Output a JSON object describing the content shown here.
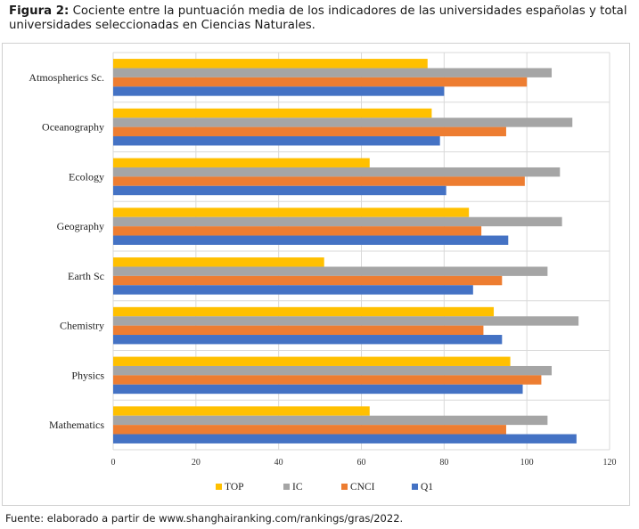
{
  "caption": {
    "label": "Figura 2:",
    "text": "Cociente entre la puntuación media de los indicadores de las universidades españolas y total universidades seleccionadas en Ciencias Naturales."
  },
  "source": "Fuente: elaborado a partir de www.shanghairanking.com/rankings/gras/2022.",
  "chart_data": {
    "type": "bar",
    "orientation": "horizontal",
    "categories": [
      "Atmospherics Sc.",
      "Oceanography",
      "Ecology",
      "Geography",
      "Earth Sc",
      "Chemistry",
      "Physics",
      "Mathematics"
    ],
    "series": [
      {
        "name": "TOP",
        "color": "#ffc000",
        "values": [
          76,
          77,
          62,
          86,
          51,
          92,
          96,
          62
        ]
      },
      {
        "name": "IC",
        "color": "#a5a5a5",
        "values": [
          106,
          111,
          108,
          108.5,
          105,
          112.5,
          106,
          105
        ]
      },
      {
        "name": "CNCI",
        "color": "#ed7d31",
        "values": [
          100,
          95,
          99.5,
          89,
          94,
          89.5,
          103.5,
          95
        ]
      },
      {
        "name": "Q1",
        "color": "#4472c4",
        "values": [
          80,
          79,
          80.5,
          95.5,
          87,
          94,
          99,
          112
        ]
      }
    ],
    "xlim": [
      0,
      120
    ],
    "xticks": [
      0,
      20,
      40,
      60,
      80,
      100,
      120
    ],
    "grid": true,
    "legend_position": "bottom"
  }
}
